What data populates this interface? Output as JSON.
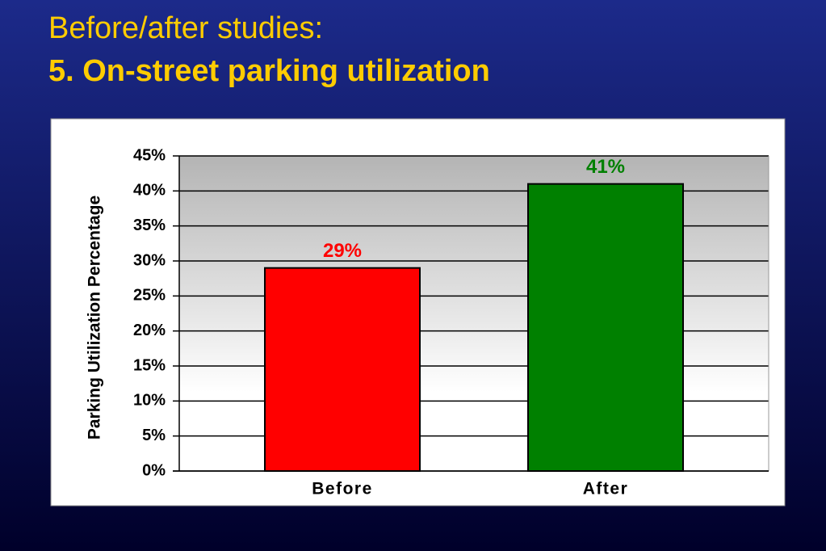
{
  "title": "Before/after studies:",
  "subtitle": "5. On-street parking utilization",
  "chart_data": {
    "type": "bar",
    "y_label": "Parking Utilization Percentage",
    "categories": [
      "Before",
      "After"
    ],
    "values": [
      29,
      41
    ],
    "value_labels": [
      "29%",
      "41%"
    ],
    "colors": [
      "#ff0000",
      "#008000"
    ],
    "ylim": [
      0,
      45
    ],
    "yticks": [
      {
        "value": 0,
        "label": "0%"
      },
      {
        "value": 5,
        "label": "5%"
      },
      {
        "value": 10,
        "label": "10%"
      },
      {
        "value": 15,
        "label": "15%"
      },
      {
        "value": 20,
        "label": "20%"
      },
      {
        "value": 25,
        "label": "25%"
      },
      {
        "value": 30,
        "label": "30%"
      },
      {
        "value": 35,
        "label": "35%"
      },
      {
        "value": 40,
        "label": "40%"
      },
      {
        "value": 45,
        "label": "45%"
      }
    ],
    "grid": true
  }
}
